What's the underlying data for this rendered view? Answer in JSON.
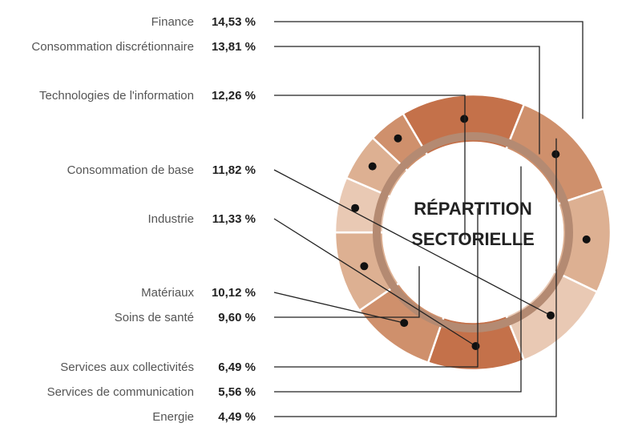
{
  "chart_data": {
    "type": "pie",
    "title": "RÉPARTITION SECTORIELLE",
    "unit": "%",
    "slices": [
      {
        "name": "Finance",
        "value_label": "14,53 %",
        "value": 14.53,
        "color": "#c4714a"
      },
      {
        "name": "Consommation discrétionnaire",
        "value_label": "13,81 %",
        "value": 13.81,
        "color": "#cf906c"
      },
      {
        "name": "Technologies de l'information",
        "value_label": "12,26 %",
        "value": 12.26,
        "color": "#ddb092"
      },
      {
        "name": "Consommation de base",
        "value_label": "11,82 %",
        "value": 11.82,
        "color": "#e9c9b4"
      },
      {
        "name": "Industrie",
        "value_label": "11,33 %",
        "value": 11.33,
        "color": "#c4714a"
      },
      {
        "name": "Matériaux",
        "value_label": "10,12 %",
        "value": 10.12,
        "color": "#cf906c"
      },
      {
        "name": "Soins de santé",
        "value_label": "9,60 %",
        "value": 9.6,
        "color": "#ddb092"
      },
      {
        "name": "Services aux collectivités",
        "value_label": "6,49 %",
        "value": 6.49,
        "color": "#e9c9b4"
      },
      {
        "name": "Services de communication",
        "value_label": "5,56 %",
        "value": 5.56,
        "color": "#ddb092"
      },
      {
        "name": "Energie",
        "value_label": "4,49 %",
        "value": 4.49,
        "color": "#cf906c"
      }
    ]
  }
}
